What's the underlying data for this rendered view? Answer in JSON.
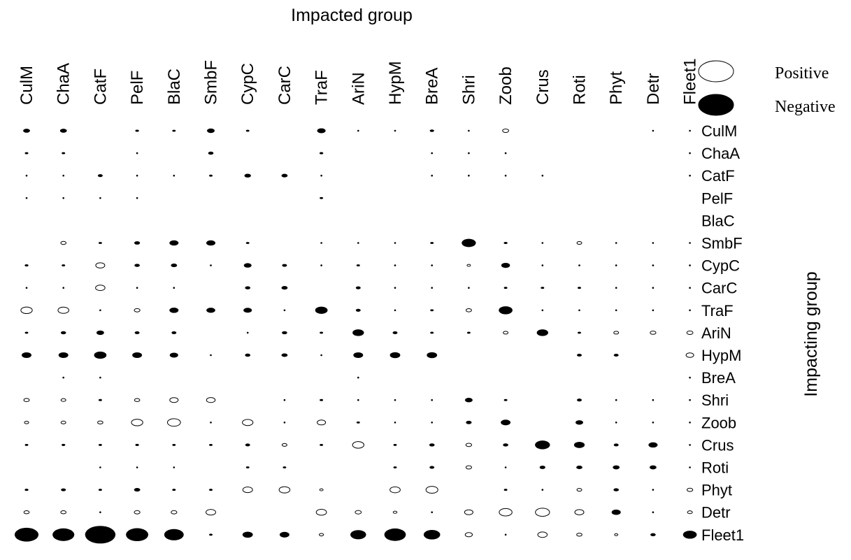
{
  "chart_data": {
    "type": "bubble-matrix",
    "title": "Impacted group",
    "xlabel": "Impacted group",
    "ylabel": "Impacting group",
    "columns": [
      "CulM",
      "ChaA",
      "CatF",
      "PelF",
      "BlaC",
      "SmbF",
      "CypC",
      "CarC",
      "TraF",
      "AriN",
      "HypM",
      "BreA",
      "Shri",
      "Zoob",
      "Crus",
      "Roti",
      "Phyt",
      "Detr",
      "Fleet1"
    ],
    "rows": [
      "CulM",
      "ChaA",
      "CatF",
      "PelF",
      "BlaC",
      "SmbF",
      "CypC",
      "CarC",
      "TraF",
      "AriN",
      "HypM",
      "BreA",
      "Shri",
      "Zoob",
      "Crus",
      "Roti",
      "Phyt",
      "Detr",
      "Fleet1"
    ],
    "legend": {
      "positive_label": "Positive",
      "negative_label": "Negative"
    },
    "impacts": [
      [
        -0.2,
        -0.2,
        0,
        -0.06,
        -0.05,
        -0.25,
        -0.05,
        0,
        -0.3,
        -0.03,
        -0.03,
        -0.08,
        -0.03,
        0.16,
        0,
        0,
        0,
        -0.03,
        -0.03
      ],
      [
        -0.05,
        -0.05,
        0,
        -0.03,
        0,
        -0.12,
        0,
        0,
        -0.06,
        0,
        0,
        -0.03,
        -0.03,
        -0.03,
        0,
        0,
        0,
        0,
        -0.03
      ],
      [
        -0.03,
        -0.03,
        -0.1,
        -0.03,
        -0.03,
        -0.05,
        -0.18,
        -0.16,
        -0.03,
        0,
        0,
        -0.03,
        -0.03,
        -0.03,
        -0.03,
        0,
        0,
        0,
        -0.03
      ],
      [
        -0.03,
        -0.03,
        -0.03,
        -0.03,
        0,
        0,
        0,
        0,
        -0.05,
        0,
        0,
        0,
        0,
        0,
        0,
        0,
        0,
        0,
        0
      ],
      [
        0,
        0,
        0,
        0,
        0,
        0,
        0,
        0,
        0,
        0,
        0,
        0,
        0,
        0,
        0,
        0,
        0,
        0,
        0
      ],
      [
        0,
        0.12,
        -0.05,
        -0.14,
        -0.35,
        -0.35,
        -0.05,
        0,
        -0.03,
        -0.03,
        -0.03,
        -0.05,
        -0.85,
        -0.06,
        -0.03,
        0.1,
        -0.03,
        -0.03,
        -0.03
      ],
      [
        -0.06,
        -0.05,
        0.35,
        -0.12,
        -0.16,
        -0.03,
        -0.25,
        -0.1,
        -0.03,
        -0.05,
        -0.03,
        -0.03,
        0.05,
        -0.32,
        -0.03,
        -0.03,
        -0.03,
        -0.03,
        -0.03
      ],
      [
        -0.03,
        -0.03,
        0.38,
        -0.03,
        -0.03,
        0,
        -0.12,
        -0.16,
        0,
        -0.1,
        -0.03,
        -0.03,
        -0.03,
        -0.05,
        -0.05,
        -0.05,
        -0.03,
        -0.03,
        -0.03
      ],
      [
        0.55,
        0.5,
        -0.03,
        0.14,
        -0.35,
        -0.33,
        -0.3,
        -0.03,
        -0.65,
        -0.1,
        -0.03,
        -0.05,
        0.13,
        -0.8,
        -0.03,
        -0.03,
        -0.03,
        -0.03,
        -0.03
      ],
      [
        -0.05,
        -0.12,
        -0.25,
        -0.1,
        -0.1,
        0,
        -0.03,
        -0.12,
        -0.05,
        -0.55,
        -0.1,
        -0.05,
        -0.05,
        0.1,
        -0.55,
        -0.05,
        0.1,
        0.14,
        0.16
      ],
      [
        -0.4,
        -0.4,
        -0.65,
        -0.4,
        -0.3,
        -0.03,
        -0.12,
        -0.16,
        -0.03,
        -0.4,
        -0.45,
        -0.45,
        0,
        0,
        0,
        -0.1,
        -0.1,
        0,
        0.25
      ],
      [
        0,
        -0.03,
        -0.03,
        0,
        0,
        0,
        0,
        0,
        0,
        -0.03,
        0,
        0,
        0,
        0,
        0,
        0,
        0,
        0,
        -0.03
      ],
      [
        0.13,
        0.1,
        -0.05,
        0.12,
        0.3,
        0.32,
        0,
        -0.03,
        -0.05,
        -0.03,
        -0.03,
        -0.03,
        -0.25,
        -0.05,
        0,
        -0.1,
        -0.03,
        -0.03,
        -0.03
      ],
      [
        0.08,
        0.1,
        0.12,
        0.55,
        0.72,
        -0.03,
        0.48,
        -0.03,
        0.3,
        -0.05,
        -0.03,
        -0.03,
        -0.14,
        -0.4,
        0,
        -0.25,
        -0.03,
        -0.03,
        -0.03
      ],
      [
        -0.05,
        -0.06,
        -0.05,
        -0.06,
        -0.05,
        -0.05,
        -0.1,
        0.1,
        -0.05,
        0.55,
        -0.05,
        -0.12,
        0.14,
        -0.12,
        -0.95,
        -0.48,
        -0.1,
        -0.35,
        -0.03
      ],
      [
        0,
        0,
        -0.03,
        -0.03,
        -0.03,
        0,
        -0.05,
        -0.05,
        0,
        0,
        -0.05,
        -0.1,
        0.14,
        -0.03,
        -0.14,
        -0.16,
        -0.2,
        -0.2,
        -0.03
      ],
      [
        -0.06,
        -0.1,
        -0.05,
        -0.16,
        -0.05,
        -0.05,
        0.4,
        0.5,
        0.05,
        0,
        0.45,
        0.6,
        0,
        -0.05,
        -0.03,
        0.1,
        -0.12,
        -0.03,
        0.14
      ],
      [
        0.12,
        0.12,
        -0.03,
        0.14,
        0.14,
        0.4,
        0,
        0,
        0.45,
        0.16,
        0.06,
        -0.03,
        0.3,
        0.7,
        0.85,
        0.35,
        -0.35,
        -0.03,
        0.1
      ],
      [
        -2.4,
        -2.0,
        -3.9,
        -2.1,
        -1.6,
        -0.05,
        -0.45,
        -0.4,
        0.08,
        -1.05,
        -1.95,
        -1.15,
        0.22,
        -0.03,
        0.38,
        0.12,
        0.05,
        -0.12,
        -0.8
      ]
    ]
  }
}
